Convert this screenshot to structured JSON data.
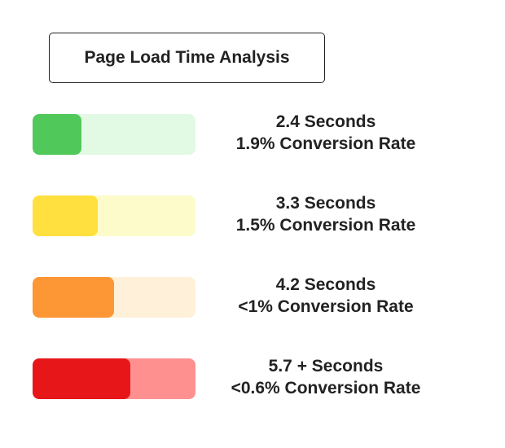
{
  "title": "Page Load Time Analysis",
  "chart_data": {
    "type": "bar",
    "orientation": "horizontal",
    "title": "Page Load Time Analysis",
    "rows": [
      {
        "seconds_label": "2.4 Seconds",
        "conversion_label": "1.9% Conversion Rate",
        "fill_fraction": 0.3,
        "fill_color": "#50c85a",
        "track_color": "#e2f9e4"
      },
      {
        "seconds_label": "3.3 Seconds",
        "conversion_label": "1.5% Conversion Rate",
        "fill_fraction": 0.4,
        "fill_color": "#ffe03f",
        "track_color": "#fdfbc9"
      },
      {
        "seconds_label": "4.2 Seconds",
        "conversion_label": "<1% Conversion Rate",
        "fill_fraction": 0.5,
        "fill_color": "#fd9634",
        "track_color": "#fff1d9"
      },
      {
        "seconds_label": "5.7 + Seconds",
        "conversion_label": "<0.6% Conversion Rate",
        "fill_fraction": 0.6,
        "fill_color": "#e71719",
        "track_color": "#fe9090"
      }
    ]
  }
}
